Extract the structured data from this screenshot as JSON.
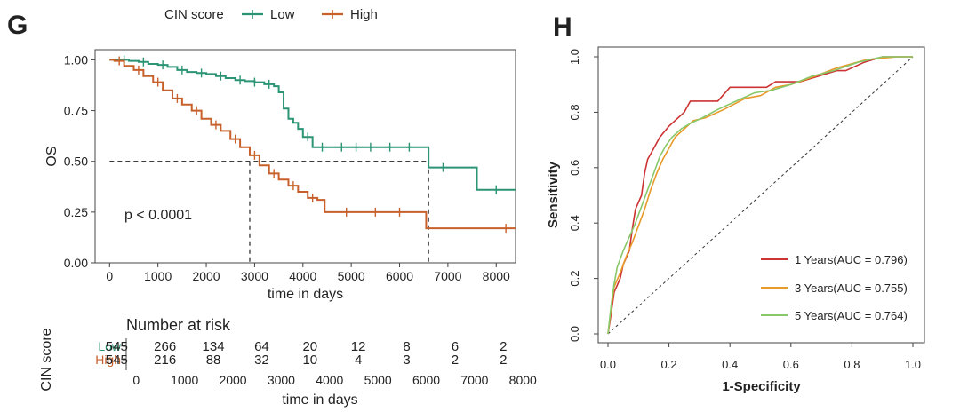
{
  "chart_data": [
    {
      "panel": "G",
      "type": "line",
      "subtype": "kaplan-meier",
      "legend": {
        "title": "CIN score",
        "placement": "top",
        "entries": [
          "Low",
          "High"
        ]
      },
      "xlabel": "time in days",
      "ylabel": "OS",
      "xlim": [
        -300,
        8400
      ],
      "ylim": [
        0,
        1.05
      ],
      "xticks": [
        0,
        1000,
        2000,
        3000,
        4000,
        5000,
        6000,
        7000,
        8000
      ],
      "xtick_labels": [
        "0",
        "1000",
        "2000",
        "3000",
        "4000",
        "5000",
        "6000",
        "7000",
        "8000"
      ],
      "yticks": [
        0,
        0.25,
        0.5,
        0.75,
        1.0
      ],
      "ytick_labels": [
        "0.00",
        "0.25",
        "0.50",
        "0.75",
        "1.00"
      ],
      "annotation": "p < 0.0001",
      "median_survival": {
        "Low": 6600,
        "High": 2900
      },
      "series": [
        {
          "name": "Low",
          "color": "#2a9474",
          "x": [
            0,
            200,
            400,
            600,
            800,
            1000,
            1200,
            1400,
            1600,
            1800,
            2000,
            2200,
            2400,
            2600,
            2800,
            3000,
            3200,
            3400,
            3500,
            3600,
            3700,
            3800,
            3900,
            4000,
            4200,
            6500,
            6600,
            7500,
            7600,
            8400
          ],
          "y": [
            1.0,
            1.0,
            0.995,
            0.99,
            0.98,
            0.975,
            0.965,
            0.95,
            0.94,
            0.935,
            0.93,
            0.92,
            0.91,
            0.9,
            0.895,
            0.89,
            0.88,
            0.87,
            0.84,
            0.76,
            0.71,
            0.69,
            0.66,
            0.62,
            0.57,
            0.57,
            0.47,
            0.47,
            0.36,
            0.36
          ],
          "censor_x": [
            300,
            700,
            1100,
            1500,
            1900,
            2300,
            2700,
            3000,
            3300,
            4100,
            4400,
            4800,
            5100,
            5400,
            5800,
            6200,
            6900,
            8000
          ]
        },
        {
          "name": "High",
          "color": "#c8602c",
          "x": [
            0,
            100,
            300,
            500,
            700,
            900,
            1100,
            1300,
            1500,
            1700,
            1900,
            2100,
            2300,
            2500,
            2700,
            2900,
            3100,
            3300,
            3500,
            3700,
            3900,
            4100,
            4300,
            4450,
            6500,
            6550,
            8400
          ],
          "y": [
            1.0,
            0.995,
            0.97,
            0.95,
            0.92,
            0.89,
            0.85,
            0.81,
            0.78,
            0.75,
            0.71,
            0.68,
            0.65,
            0.61,
            0.57,
            0.53,
            0.48,
            0.44,
            0.41,
            0.38,
            0.35,
            0.32,
            0.31,
            0.25,
            0.25,
            0.17,
            0.17
          ],
          "censor_x": [
            200,
            600,
            1000,
            1400,
            1800,
            2200,
            2600,
            3000,
            3400,
            3800,
            4200,
            4900,
            5500,
            6000,
            8200
          ]
        }
      ],
      "risk_table": {
        "title": "Number at risk",
        "ylabel": "CIN score",
        "xlabel": "time in days",
        "rows": [
          {
            "name": "Low",
            "color": "#2a9474",
            "values": [
              "545",
              "266",
              "134",
              "64",
              "20",
              "12",
              "8",
              "6",
              "2"
            ]
          },
          {
            "name": "High",
            "color": "#c8602c",
            "values": [
              "545",
              "216",
              "88",
              "32",
              "10",
              "4",
              "3",
              "2",
              "2"
            ]
          }
        ],
        "times": [
          0,
          1000,
          2000,
          3000,
          4000,
          5000,
          6000,
          7000,
          8000
        ],
        "time_labels": [
          "0",
          "1000",
          "2000",
          "3000",
          "4000",
          "5000",
          "6000",
          "7000",
          "8000"
        ]
      }
    },
    {
      "panel": "H",
      "type": "line",
      "subtype": "roc",
      "xlabel": "1-Specificity",
      "ylabel": "Sensitivity",
      "xlim": [
        0,
        1
      ],
      "ylim": [
        0,
        1
      ],
      "xticks": [
        0.0,
        0.2,
        0.4,
        0.6,
        0.8,
        1.0
      ],
      "xtick_labels": [
        "0.0",
        "0.2",
        "0.4",
        "0.6",
        "0.8",
        "1.0"
      ],
      "yticks": [
        0.0,
        0.2,
        0.4,
        0.6,
        0.8,
        1.0
      ],
      "ytick_labels": [
        "0.0",
        "0.2",
        "0.4",
        "0.6",
        "0.8",
        "1.0"
      ],
      "legend_placement": "bottom-right",
      "series": [
        {
          "name": "1 Years(AUC = 0.796)",
          "color": "#cc3333",
          "x": [
            0,
            0.01,
            0.02,
            0.04,
            0.05,
            0.07,
            0.08,
            0.09,
            0.11,
            0.12,
            0.13,
            0.15,
            0.17,
            0.2,
            0.25,
            0.27,
            0.33,
            0.36,
            0.4,
            0.45,
            0.52,
            0.55,
            0.63,
            0.75,
            0.78,
            0.84,
            0.9,
            0.95,
            1.0
          ],
          "y": [
            0.0,
            0.07,
            0.15,
            0.2,
            0.25,
            0.3,
            0.38,
            0.45,
            0.5,
            0.58,
            0.63,
            0.67,
            0.71,
            0.75,
            0.8,
            0.84,
            0.84,
            0.84,
            0.89,
            0.89,
            0.89,
            0.91,
            0.91,
            0.95,
            0.95,
            0.98,
            1.0,
            1.0,
            1.0
          ]
        },
        {
          "name": "3 Years(AUC = 0.755)",
          "color": "#e89a2a",
          "x": [
            0,
            0.01,
            0.02,
            0.04,
            0.06,
            0.08,
            0.1,
            0.12,
            0.14,
            0.16,
            0.18,
            0.2,
            0.22,
            0.25,
            0.28,
            0.32,
            0.38,
            0.45,
            0.5,
            0.55,
            0.6,
            0.68,
            0.75,
            0.85,
            0.95,
            1.0
          ],
          "y": [
            0.0,
            0.09,
            0.17,
            0.22,
            0.28,
            0.33,
            0.39,
            0.45,
            0.52,
            0.58,
            0.63,
            0.67,
            0.71,
            0.74,
            0.77,
            0.78,
            0.81,
            0.85,
            0.86,
            0.89,
            0.9,
            0.93,
            0.96,
            0.99,
            1.0,
            1.0
          ]
        },
        {
          "name": "5 Years(AUC = 0.764)",
          "color": "#88c86a",
          "x": [
            0,
            0.01,
            0.02,
            0.03,
            0.05,
            0.07,
            0.09,
            0.11,
            0.13,
            0.15,
            0.17,
            0.19,
            0.21,
            0.24,
            0.27,
            0.31,
            0.36,
            0.42,
            0.48,
            0.54,
            0.6,
            0.67,
            0.74,
            0.82,
            0.9,
            1.0
          ],
          "y": [
            0.0,
            0.1,
            0.18,
            0.24,
            0.3,
            0.35,
            0.4,
            0.46,
            0.52,
            0.58,
            0.64,
            0.68,
            0.71,
            0.74,
            0.76,
            0.78,
            0.81,
            0.84,
            0.87,
            0.88,
            0.9,
            0.93,
            0.95,
            0.98,
            1.0,
            1.0
          ]
        }
      ]
    }
  ]
}
